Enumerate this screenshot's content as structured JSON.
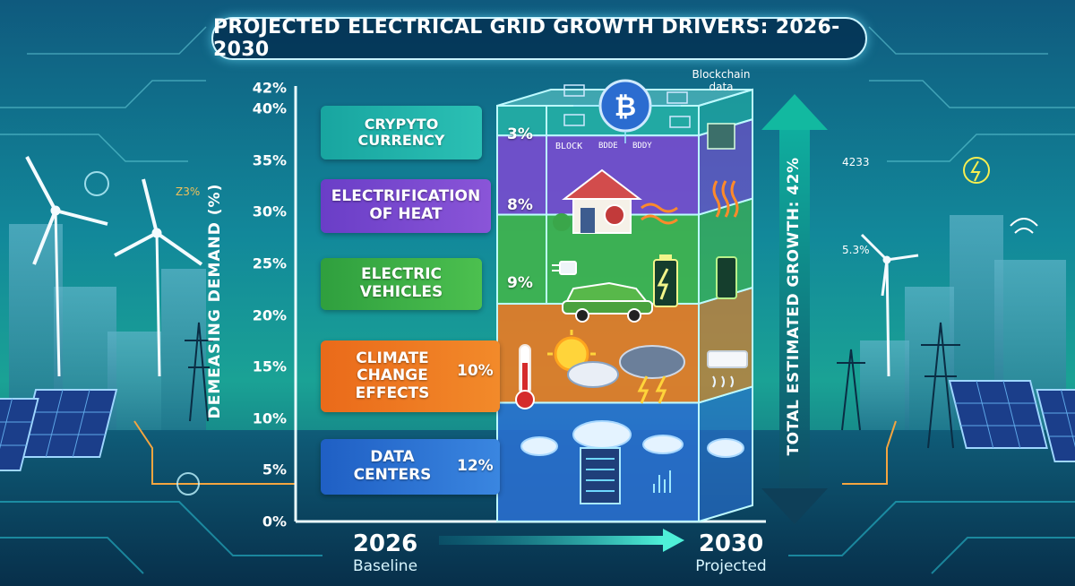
{
  "title": "PROJECTED ELECTRICAL GRID GROWTH DRIVERS: 2026-2030",
  "colors": {
    "crypto": "#24b0a6",
    "heat": "#7b4ad0",
    "ev": "#42b54a",
    "climate": "#f07a20",
    "datacenters": "#2a6fd0",
    "accent_glow": "#6ff2ff"
  },
  "chart_data": {
    "type": "bar",
    "stacked": true,
    "title": "PROJECTED ELECTRICAL GRID GROWTH DRIVERS: 2026-2030",
    "ylabel": "DEMEASING DEMAND (%)",
    "ylim": [
      0,
      42
    ],
    "yticks": [
      "0%",
      "5%",
      "10%",
      "15%",
      "20%",
      "25%",
      "30%",
      "35%",
      "40%",
      "42%"
    ],
    "ytick_values": [
      0,
      5,
      10,
      15,
      20,
      25,
      30,
      35,
      40,
      42
    ],
    "categories": [
      "2026",
      "2030"
    ],
    "category_sublabels": [
      "Baseline",
      "Projected"
    ],
    "series": [
      {
        "name": "DATA CENTERS",
        "value": 12,
        "value_label": "12%"
      },
      {
        "name": "CLIMATE CHANGE EFFECTS",
        "value": 10,
        "value_label": "10%"
      },
      {
        "name": "ELECTRIC VEHICLES",
        "value": 9,
        "value_label": "9%"
      },
      {
        "name": "ELECTRIFICATION OF HEAT",
        "value": 8,
        "value_label": "8%"
      },
      {
        "name": "CRYPYTO CURRENCY",
        "value": 3,
        "value_label": "3%"
      }
    ],
    "total_label": "TOTAL ESTIMATED GROWTH: 42%",
    "grid": false
  },
  "labels": {
    "crypto": [
      "CRYPYTO",
      "CURRENCY"
    ],
    "heat": [
      "ELECTRIFICATION",
      "OF HEAT"
    ],
    "ev": [
      "ELECTRIC",
      "VEHICLES"
    ],
    "climate": [
      "CLIMATE",
      "CHANGE",
      "EFFECTS"
    ],
    "datacenters": [
      "DATA",
      "CENTERS"
    ]
  },
  "annotations": {
    "blockchain": "Blockchain data",
    "block_words": [
      "BLOCK",
      "BDDE",
      "BDDY"
    ],
    "left_note": "Z3%",
    "right_note_1": "4233",
    "right_note_2": "5.3%"
  },
  "icons": [
    "bitcoin-icon",
    "house-icon",
    "heat-waves-icon",
    "plug-icon",
    "car-icon",
    "battery-icon",
    "thermometer-icon",
    "sun-icon",
    "storm-cloud-icon",
    "air-conditioner-icon",
    "cloud-server-icon",
    "wind-turbine-icon",
    "solar-panel-icon",
    "pylon-icon"
  ]
}
